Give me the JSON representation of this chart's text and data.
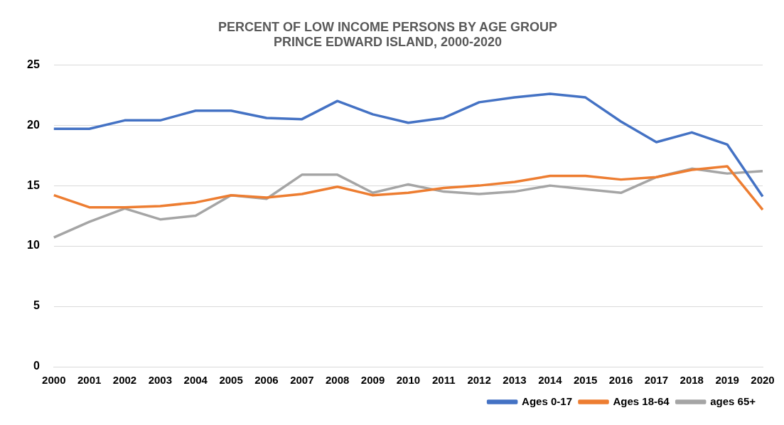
{
  "chart_data": {
    "type": "line",
    "title": "PERCENT OF LOW INCOME PERSONS BY AGE GROUP",
    "subtitle": "PRINCE EDWARD ISLAND, 2000-2020",
    "categories": [
      "2000",
      "2001",
      "2002",
      "2003",
      "2004",
      "2005",
      "2006",
      "2007",
      "2008",
      "2009",
      "2010",
      "2011",
      "2012",
      "2013",
      "2014",
      "2015",
      "2016",
      "2017",
      "2018",
      "2019",
      "2020"
    ],
    "series": [
      {
        "name": "Ages 0-17",
        "color": "#4472c4",
        "values": [
          19.7,
          19.7,
          20.4,
          20.4,
          21.2,
          21.2,
          20.6,
          20.5,
          22.0,
          20.9,
          20.2,
          20.6,
          21.9,
          22.3,
          22.6,
          22.3,
          20.3,
          18.6,
          19.4,
          18.4,
          14.1
        ]
      },
      {
        "name": "Ages 18-64",
        "color": "#ed7d31",
        "values": [
          14.2,
          13.2,
          13.2,
          13.3,
          13.6,
          14.2,
          14.0,
          14.3,
          14.9,
          14.2,
          14.4,
          14.8,
          15.0,
          15.3,
          15.8,
          15.8,
          15.5,
          15.7,
          16.3,
          16.6,
          13.0
        ]
      },
      {
        "name": "ages 65+",
        "color": "#a5a5a5",
        "values": [
          10.7,
          12.0,
          13.1,
          12.2,
          12.5,
          14.2,
          13.9,
          15.9,
          15.9,
          14.4,
          15.1,
          14.5,
          14.3,
          14.5,
          15.0,
          14.7,
          14.4,
          15.7,
          16.4,
          16.0,
          16.2
        ]
      }
    ],
    "ylim": [
      0,
      25
    ],
    "yticks": [
      0,
      5,
      10,
      15,
      20,
      25
    ],
    "grid": "y",
    "legend": "bottom right",
    "marker": "none",
    "line_style": "solid"
  }
}
